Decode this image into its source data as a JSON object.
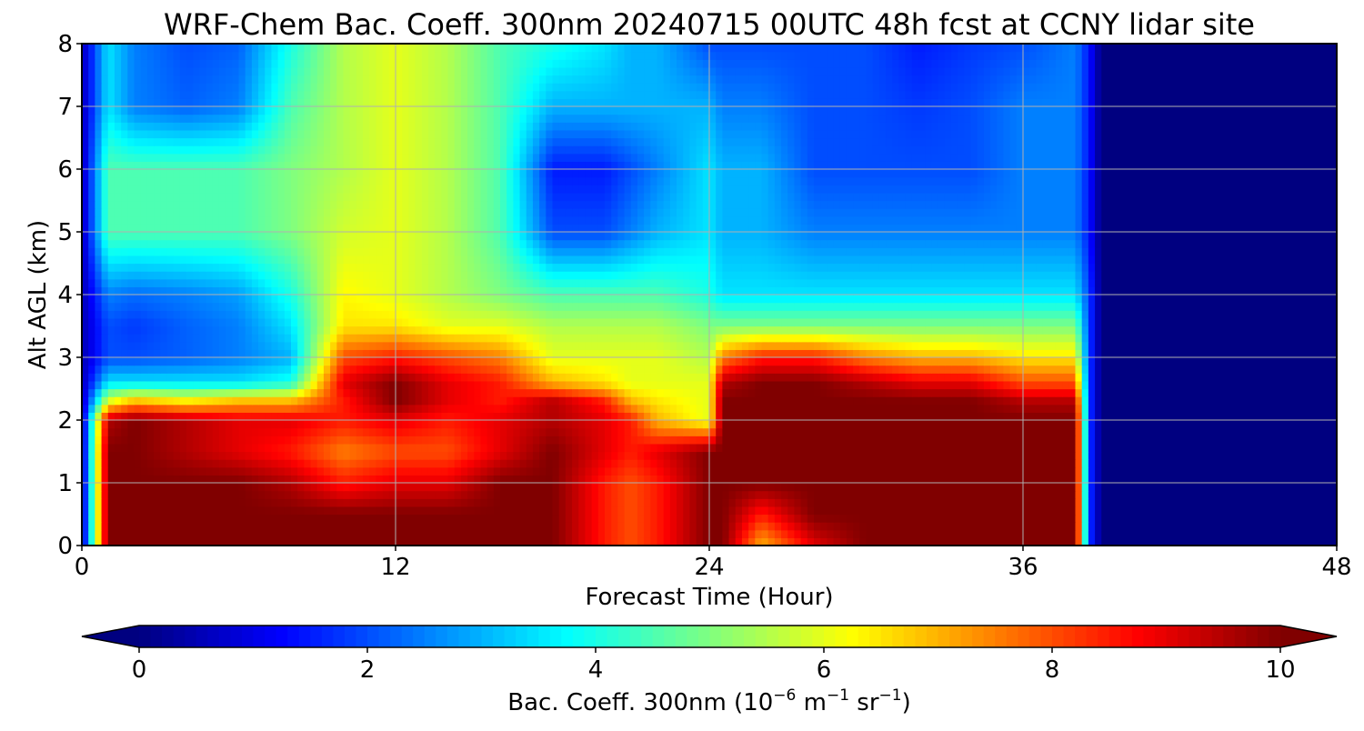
{
  "chart_data": {
    "type": "heatmap",
    "title": "WRF-Chem Bac. Coeff. 300nm  20240715 00UTC 48h fcst at CCNY lidar site",
    "xlabel": "Forecast Time (Hour)",
    "ylabel": "Alt AGL (km)",
    "xlim": [
      0,
      48
    ],
    "ylim": [
      0,
      8
    ],
    "xticks": [
      0,
      12,
      24,
      36,
      48
    ],
    "yticks": [
      0,
      1,
      2,
      3,
      4,
      5,
      6,
      7,
      8
    ],
    "grid": true,
    "colorscale": "jet",
    "colorbar": {
      "label_prefix": "Bac. Coeff. 300nm  (10",
      "label_exp1": "−6",
      "label_mid": " m",
      "label_exp2": "−1",
      "label_mid2": " sr",
      "label_exp3": "−1",
      "label_suffix": ")",
      "range": [
        0,
        10
      ],
      "ticks": [
        0,
        2,
        4,
        6,
        8,
        10
      ],
      "extend": "both",
      "orientation": "horizontal"
    },
    "x": [
      0,
      1,
      2,
      4,
      6,
      8,
      10,
      12,
      14,
      16,
      18,
      20,
      21,
      22,
      24,
      24.5,
      26,
      28,
      30,
      32,
      34,
      36,
      38,
      38.5,
      39,
      48
    ],
    "y": [
      0,
      0.5,
      1,
      1.5,
      2,
      2.3,
      2.6,
      3,
      3.5,
      4,
      5,
      6,
      7,
      8
    ],
    "z": [
      [
        0.5,
        10,
        10,
        10,
        10,
        10,
        10,
        10,
        10,
        10,
        10,
        8.5,
        8,
        8.5,
        10,
        10,
        7,
        9,
        10,
        10,
        10,
        10,
        10,
        2,
        0,
        0
      ],
      [
        0.5,
        10,
        10,
        10,
        10,
        10,
        10,
        10,
        10,
        10,
        10,
        8.5,
        8,
        8.5,
        10,
        10,
        8.5,
        10,
        10,
        10,
        10,
        10,
        10,
        2,
        0,
        0
      ],
      [
        0.5,
        10,
        10,
        10,
        10,
        9.5,
        8.5,
        9,
        9,
        10,
        10,
        8.5,
        8,
        8.5,
        10,
        10,
        10,
        10,
        10,
        10,
        10,
        10,
        10,
        2,
        0,
        0
      ],
      [
        0.5,
        10,
        10,
        9.5,
        9,
        8.5,
        7.5,
        8,
        8,
        9,
        10,
        9,
        8.5,
        9,
        10,
        10,
        10,
        10,
        10,
        10,
        10,
        10,
        10,
        2,
        0,
        0
      ],
      [
        0.5,
        9.5,
        10,
        9.5,
        9,
        9,
        8.5,
        9,
        8.5,
        9,
        9.5,
        9,
        8.5,
        7,
        6,
        10,
        10,
        10,
        10,
        10,
        10,
        10,
        10,
        2,
        0,
        0
      ],
      [
        0.5,
        6,
        7,
        6.5,
        7,
        7,
        8.5,
        10,
        9,
        8.5,
        9.5,
        8.5,
        7,
        6.5,
        6,
        10,
        10,
        10,
        10,
        10,
        10,
        9.5,
        9.5,
        2,
        0,
        0
      ],
      [
        0.5,
        3.5,
        3.5,
        3.5,
        3.5,
        4,
        9,
        10,
        9,
        8.5,
        7,
        6.5,
        6,
        6,
        6,
        9.5,
        10,
        10,
        9.5,
        9,
        9,
        8,
        8,
        2,
        0,
        0
      ],
      [
        0.5,
        2,
        2,
        2.2,
        2.5,
        3,
        8,
        8.5,
        8,
        7.5,
        6,
        6,
        6,
        6,
        5.5,
        7.5,
        8.5,
        8.5,
        7.5,
        7,
        7,
        6.5,
        6.5,
        2,
        0,
        0
      ],
      [
        0.5,
        2,
        1.8,
        2.2,
        2.5,
        3.5,
        6.5,
        6.5,
        6,
        6,
        5.5,
        5.5,
        5.5,
        5.5,
        5,
        5,
        5,
        5,
        5,
        5,
        5,
        5,
        5,
        2,
        0,
        0
      ],
      [
        0.5,
        2.5,
        2.3,
        2.5,
        2.8,
        4,
        6.3,
        6,
        5.5,
        5,
        4.5,
        4.5,
        4.5,
        4.5,
        4,
        3.5,
        3.5,
        3.5,
        3.5,
        3.5,
        3.5,
        3.5,
        3.5,
        2,
        0,
        0
      ],
      [
        0.5,
        4.5,
        4.5,
        4.5,
        4.5,
        5,
        5.8,
        6,
        5.5,
        4.5,
        2,
        2,
        2.5,
        3,
        3.5,
        3,
        3,
        2.5,
        2.5,
        2.5,
        2.5,
        2.5,
        2.5,
        1.5,
        0,
        0
      ],
      [
        0.5,
        4.5,
        4.5,
        4.5,
        4.5,
        5,
        5.5,
        6,
        5.5,
        4.5,
        1.5,
        1.5,
        2,
        2.5,
        3.5,
        3,
        3,
        2,
        2,
        2,
        2,
        2.5,
        2.5,
        1.5,
        0,
        0
      ],
      [
        0.5,
        3.5,
        2.5,
        2.2,
        2.5,
        4.5,
        5.5,
        6,
        5.5,
        4.5,
        3,
        3,
        3,
        3,
        3,
        2.5,
        2.5,
        2,
        2,
        1.8,
        2,
        2.5,
        2.5,
        1.5,
        0,
        0
      ],
      [
        0.5,
        3.5,
        2.5,
        2,
        2.2,
        4,
        5.5,
        6,
        5.5,
        4.5,
        4,
        3.5,
        3,
        3,
        2,
        2,
        2,
        2,
        2,
        1.5,
        1.8,
        2,
        2.5,
        1.5,
        0,
        0
      ]
    ]
  }
}
